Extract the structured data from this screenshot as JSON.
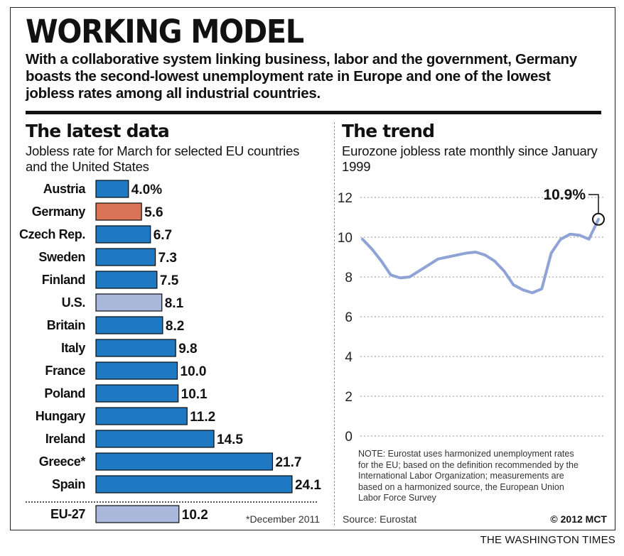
{
  "header": {
    "title": "WORKING MODEL",
    "deck": "With a collaborative system linking business, labor and the government, Germany boasts the second-lowest unemployment rate in Europe and one of the lowest jobless rates among all industrial countries."
  },
  "left": {
    "heading": "The latest data",
    "subheading": "Jobless rate for March for selected EU countries and the United States",
    "footnote": "*December 2011"
  },
  "right": {
    "heading": "The trend",
    "subheading": "Eurozone jobless rate monthly since January 1999",
    "callout": "10.9%",
    "note": "NOTE: Eurostat uses harmonized unemployment rates for the EU; based on the definition recommended by the International Labor Organization; measurements are based on a harmonized source, the European Union Labor Force Survey",
    "source": "Source: Eurostat"
  },
  "credit": "© 2012 MCT",
  "publisher": "THE WASHINGTON TIMES",
  "colors": {
    "default_bar": "#1e78c2",
    "germany_bar": "#d97456",
    "us_bar": "#aab8dc",
    "line": "#8fa3d6"
  },
  "chart_data": [
    {
      "type": "bar",
      "orientation": "horizontal",
      "categories": [
        "Austria",
        "Germany",
        "Czech Rep.",
        "Sweden",
        "Finland",
        "U.S.",
        "Britain",
        "Italy",
        "France",
        "Poland",
        "Hungary",
        "Ireland",
        "Greece*",
        "Spain",
        "EU-27"
      ],
      "values": [
        4.0,
        5.6,
        6.7,
        7.3,
        7.5,
        8.1,
        8.2,
        9.8,
        10.0,
        10.1,
        11.2,
        14.5,
        21.7,
        24.1,
        10.2
      ],
      "value_labels": [
        "4.0%",
        "5.6",
        "6.7",
        "7.3",
        "7.5",
        "8.1",
        "8.2",
        "9.8",
        "10.0",
        "10.1",
        "11.2",
        "14.5",
        "21.7",
        "24.1",
        "10.2"
      ],
      "highlight": {
        "Germany": "#d97456",
        "U.S.": "#aab8dc",
        "EU-27": "#aab8dc"
      },
      "separated_last": true
    },
    {
      "type": "line",
      "x": [
        "1999",
        "1999",
        "2000",
        "2001",
        "2001",
        "2002",
        "2002",
        "2003",
        "2004",
        "2005",
        "2005",
        "2006",
        "2006",
        "2007",
        "2007",
        "2008",
        "2008",
        "2009",
        "2009",
        "2009",
        "2010",
        "2010",
        "2011",
        "2011",
        "2012",
        "2012"
      ],
      "y": [
        9.9,
        9.4,
        8.8,
        8.1,
        7.95,
        8.0,
        8.3,
        8.6,
        8.9,
        9.0,
        9.1,
        9.2,
        9.25,
        9.1,
        8.8,
        8.3,
        7.6,
        7.35,
        7.2,
        7.4,
        9.2,
        9.9,
        10.15,
        10.1,
        9.9,
        10.9
      ],
      "yticks": [
        0,
        2,
        4,
        6,
        8,
        10,
        12
      ],
      "ylim": [
        0,
        12
      ],
      "grid": true,
      "last_value": 10.9
    }
  ]
}
